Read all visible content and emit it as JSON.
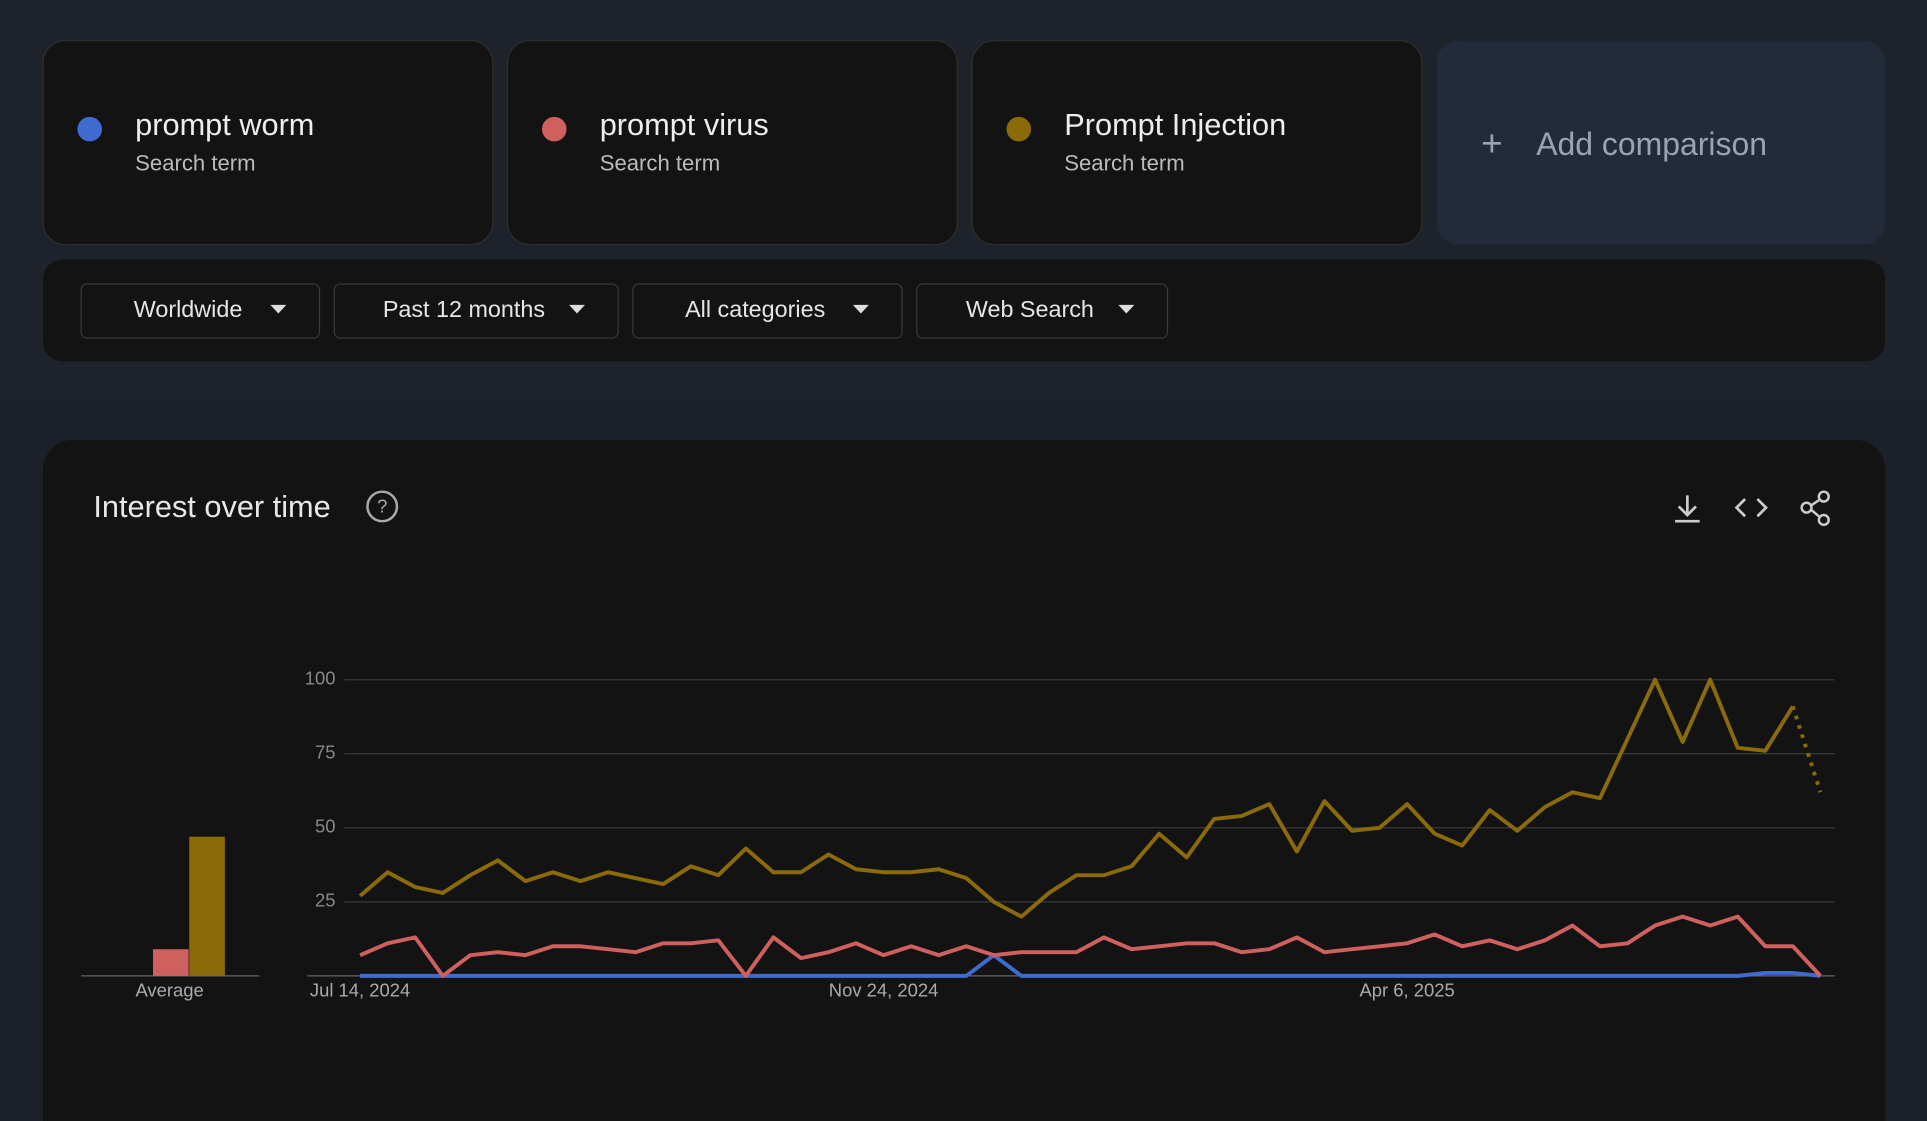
{
  "terms": [
    {
      "name": "prompt worm",
      "subtitle": "Search term",
      "color": "#3f6bd0"
    },
    {
      "name": "prompt virus",
      "subtitle": "Search term",
      "color": "#d0605e"
    },
    {
      "name": "Prompt Injection",
      "subtitle": "Search term",
      "color": "#8a6a09"
    }
  ],
  "add_comparison": "Add comparison",
  "filters": [
    "Worldwide",
    "Past 12 months",
    "All categories",
    "Web Search"
  ],
  "chart_data": {
    "type": "line",
    "title": "Interest over time",
    "categories": [
      "Jul 14, 2024",
      null,
      null,
      null,
      null,
      null,
      null,
      null,
      null,
      null,
      null,
      null,
      null,
      null,
      null,
      null,
      null,
      null,
      null,
      "Nov 24, 2024",
      null,
      null,
      null,
      null,
      null,
      null,
      null,
      null,
      null,
      null,
      null,
      null,
      null,
      null,
      null,
      null,
      null,
      null,
      "Apr 6, 2025",
      null,
      null,
      null,
      null,
      null,
      null,
      null,
      null,
      null,
      null,
      null,
      null,
      null,
      null,
      null
    ],
    "series": [
      {
        "name": "prompt worm",
        "color": "#3f6bd0",
        "values": [
          0,
          0,
          0,
          0,
          0,
          0,
          0,
          0,
          0,
          0,
          0,
          0,
          0,
          0,
          0,
          0,
          0,
          0,
          0,
          0,
          0,
          0,
          0,
          7,
          0,
          0,
          0,
          0,
          0,
          0,
          0,
          0,
          0,
          0,
          0,
          0,
          0,
          0,
          0,
          0,
          0,
          0,
          0,
          0,
          0,
          0,
          0,
          0,
          0,
          0,
          0,
          1,
          1,
          0
        ]
      },
      {
        "name": "prompt virus",
        "color": "#d0605e",
        "values": [
          7,
          11,
          13,
          0,
          7,
          8,
          7,
          10,
          10,
          9,
          8,
          11,
          11,
          12,
          0,
          13,
          6,
          8,
          11,
          7,
          10,
          7,
          10,
          7,
          8,
          8,
          8,
          13,
          9,
          10,
          11,
          11,
          8,
          9,
          13,
          8,
          9,
          10,
          11,
          14,
          10,
          12,
          9,
          12,
          17,
          10,
          11,
          17,
          20,
          17,
          20,
          10,
          10,
          0
        ]
      },
      {
        "name": "Prompt Injection",
        "color": "#8a6a09",
        "dotted_last": true,
        "values": [
          27,
          35,
          30,
          28,
          34,
          39,
          32,
          35,
          32,
          35,
          33,
          31,
          37,
          34,
          43,
          35,
          35,
          41,
          36,
          35,
          35,
          36,
          33,
          25,
          20,
          28,
          34,
          34,
          37,
          48,
          40,
          53,
          54,
          58,
          42,
          59,
          49,
          50,
          58,
          48,
          44,
          56,
          49,
          57,
          62,
          60,
          80,
          100,
          79,
          100,
          77,
          76,
          91,
          62
        ]
      }
    ],
    "averages": {
      "label": "Average",
      "values": [
        0,
        9,
        47
      ]
    },
    "ylim": [
      0,
      100
    ],
    "yticks": [
      25,
      50,
      75,
      100
    ],
    "grid": true
  }
}
